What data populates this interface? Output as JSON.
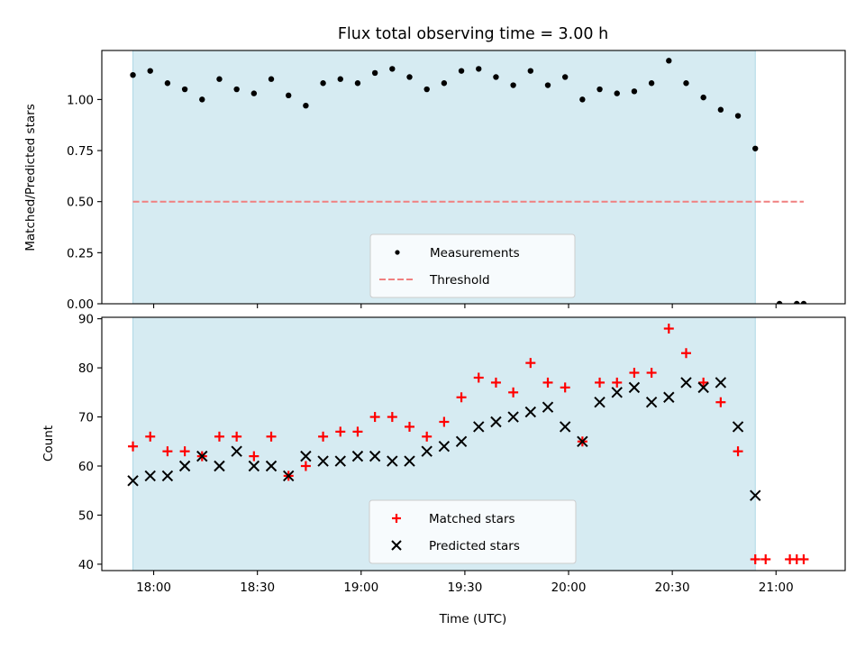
{
  "figure": {
    "title": "Flux total observing time = 3.00 h"
  },
  "colors": {
    "shade": "#add8e6",
    "measurement": "#000000",
    "threshold": "#f08080",
    "matched": "#ff0000",
    "predicted": "#000000"
  },
  "chart_data": [
    {
      "type": "scatter",
      "name": "ratio-panel",
      "ylabel": "Matched/Predicted stars",
      "ylim": [
        0,
        1.24
      ],
      "yticks": [
        0.0,
        0.25,
        0.5,
        0.75,
        1.0
      ],
      "ytick_labels": [
        "0.00",
        "0.25",
        "0.50",
        "0.75",
        "1.00"
      ],
      "xlim": [
        "17:45",
        "21:20"
      ],
      "grid": false,
      "legend_position": "bottom-center",
      "shaded_interval": [
        "17:54",
        "20:54"
      ],
      "series": [
        {
          "name": "Measurements",
          "marker": "dot",
          "x": [
            "17:54",
            "17:59",
            "18:04",
            "18:09",
            "18:14",
            "18:19",
            "18:24",
            "18:29",
            "18:34",
            "18:39",
            "18:44",
            "18:49",
            "18:54",
            "18:59",
            "19:04",
            "19:09",
            "19:14",
            "19:19",
            "19:24",
            "19:29",
            "19:34",
            "19:39",
            "19:44",
            "19:49",
            "19:54",
            "19:59",
            "20:04",
            "20:09",
            "20:14",
            "20:19",
            "20:24",
            "20:29",
            "20:34",
            "20:39",
            "20:44",
            "20:49",
            "20:54",
            "21:01",
            "21:06",
            "21:08"
          ],
          "y": [
            1.12,
            1.14,
            1.08,
            1.05,
            1.0,
            1.1,
            1.05,
            1.03,
            1.1,
            1.02,
            0.97,
            1.08,
            1.1,
            1.08,
            1.13,
            1.15,
            1.11,
            1.05,
            1.08,
            1.14,
            1.15,
            1.11,
            1.07,
            1.14,
            1.07,
            1.11,
            1.0,
            1.05,
            1.03,
            1.04,
            1.08,
            1.19,
            1.08,
            1.01,
            0.95,
            0.92,
            0.76,
            0.0,
            0.0,
            0.0
          ]
        },
        {
          "name": "Threshold",
          "style": "dashed",
          "x": [
            "17:54",
            "21:08"
          ],
          "y": [
            0.5,
            0.5
          ]
        }
      ]
    },
    {
      "type": "scatter",
      "name": "count-panel",
      "xlabel": "Time (UTC)",
      "ylabel": "Count",
      "ylim": [
        38.7,
        90.3
      ],
      "yticks": [
        40,
        50,
        60,
        70,
        80,
        90
      ],
      "ytick_labels": [
        "40",
        "50",
        "60",
        "70",
        "80",
        "90"
      ],
      "xlim": [
        "17:45",
        "21:20"
      ],
      "xticks": [
        "18:00",
        "18:30",
        "19:00",
        "19:30",
        "20:00",
        "20:30",
        "21:00"
      ],
      "xtick_labels": [
        "18:00",
        "18:30",
        "19:00",
        "19:30",
        "20:00",
        "20:30",
        "21:00"
      ],
      "grid": false,
      "legend_position": "bottom-center",
      "shaded_interval": [
        "17:54",
        "20:54"
      ],
      "series": [
        {
          "name": "Matched stars",
          "marker": "plus",
          "x": [
            "17:54",
            "17:59",
            "18:04",
            "18:09",
            "18:14",
            "18:19",
            "18:24",
            "18:29",
            "18:34",
            "18:39",
            "18:44",
            "18:49",
            "18:54",
            "18:59",
            "19:04",
            "19:09",
            "19:14",
            "19:19",
            "19:24",
            "19:29",
            "19:34",
            "19:39",
            "19:44",
            "19:49",
            "19:54",
            "19:59",
            "20:04",
            "20:09",
            "20:14",
            "20:19",
            "20:24",
            "20:29",
            "20:34",
            "20:39",
            "20:44",
            "20:49",
            "20:54",
            "20:57",
            "21:04",
            "21:06",
            "21:08"
          ],
          "y": [
            64,
            66,
            63,
            63,
            62,
            66,
            66,
            62,
            66,
            58,
            60,
            66,
            67,
            67,
            70,
            70,
            68,
            66,
            69,
            74,
            78,
            77,
            75,
            81,
            77,
            76,
            65,
            77,
            77,
            79,
            79,
            88,
            83,
            77,
            73,
            63,
            41,
            41,
            41,
            41,
            41
          ]
        },
        {
          "name": "Predicted stars",
          "marker": "x",
          "x": [
            "17:54",
            "17:59",
            "18:04",
            "18:09",
            "18:14",
            "18:19",
            "18:24",
            "18:29",
            "18:34",
            "18:39",
            "18:44",
            "18:49",
            "18:54",
            "18:59",
            "19:04",
            "19:09",
            "19:14",
            "19:19",
            "19:24",
            "19:29",
            "19:34",
            "19:39",
            "19:44",
            "19:49",
            "19:54",
            "19:59",
            "20:04",
            "20:09",
            "20:14",
            "20:19",
            "20:24",
            "20:29",
            "20:34",
            "20:39",
            "20:44",
            "20:49",
            "20:54"
          ],
          "y": [
            57,
            58,
            58,
            60,
            62,
            60,
            63,
            60,
            60,
            58,
            62,
            61,
            61,
            62,
            62,
            61,
            61,
            63,
            64,
            65,
            68,
            69,
            70,
            71,
            72,
            68,
            65,
            73,
            75,
            76,
            73,
            74,
            77,
            76,
            77,
            68,
            54
          ]
        }
      ]
    }
  ]
}
